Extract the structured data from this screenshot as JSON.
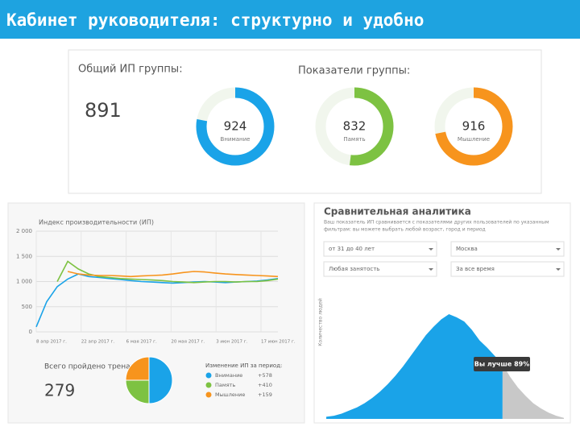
{
  "header": {
    "title": "Кабинет руководителя: структурно и удобно"
  },
  "summary": {
    "total_label": "Общий ИП группы:",
    "total_value": "891",
    "group_label": "Показатели группы:",
    "gauges": [
      {
        "value": "924",
        "label": "Внимание",
        "color": "#1aa3e8"
      },
      {
        "value": "832",
        "label": "Память",
        "color": "#7dc242"
      },
      {
        "value": "916",
        "label": "Мышление",
        "color": "#f7941d"
      }
    ]
  },
  "performance": {
    "type": "line",
    "title": "Индекс производительности (ИП)",
    "x_labels": [
      "8 апр 2017 г.",
      "22 апр 2017 г.",
      "6 мая 2017 г.",
      "20 мая 2017 г.",
      "3 июн 2017 г.",
      "17 июн 2017 г."
    ],
    "ylim": [
      0,
      2000
    ],
    "yticks": [
      {
        "value": 2000,
        "label": "2 000"
      },
      {
        "value": 1500,
        "label": "1 500"
      },
      {
        "value": 1000,
        "label": "1 000"
      },
      500,
      0
    ],
    "grid": true,
    "series": [
      {
        "color": "#1aa3e8",
        "values": [
          100,
          600,
          900,
          1050,
          1150,
          1100,
          1080,
          1060,
          1040,
          1020,
          1000,
          990,
          980,
          970,
          980,
          990,
          1000,
          990,
          980,
          990,
          1000,
          1010,
          1030,
          1060
        ]
      },
      {
        "color": "#7dc242",
        "values": [
          null,
          null,
          1000,
          1400,
          1250,
          1150,
          1100,
          1080,
          1060,
          1050,
          1040,
          1030,
          1020,
          1000,
          990,
          980,
          990,
          1000,
          1000,
          990,
          1000,
          1000,
          1020,
          1050
        ]
      },
      {
        "color": "#f7941d",
        "values": [
          null,
          null,
          null,
          1200,
          1150,
          1130,
          1120,
          1120,
          1110,
          1100,
          1110,
          1120,
          1130,
          1150,
          1180,
          1200,
          1190,
          1170,
          1150,
          1140,
          1130,
          1120,
          1110,
          1100
        ]
      }
    ]
  },
  "trainers": {
    "label": "Всего пройдено тренажеров:",
    "value": "279"
  },
  "pie": {
    "type": "pie",
    "values": [
      50,
      25,
      25
    ],
    "colors": [
      "#1aa3e8",
      "#7dc242",
      "#f7941d"
    ]
  },
  "changes": {
    "title": "Изменение ИП за период:",
    "items": [
      {
        "name": "Внимание",
        "value": "+578",
        "color": "#1aa3e8"
      },
      {
        "name": "Память",
        "value": "+410",
        "color": "#7dc242"
      },
      {
        "name": "Мышление",
        "value": "+159",
        "color": "#f7941d"
      }
    ]
  },
  "analytics": {
    "title": "Сравнительная аналитика",
    "description": [
      "Ваш показатель ИП сравнивается с показателями других пользователей по указанным",
      "фильтрам: вы можете выбрать любой возраст, город и период"
    ],
    "filters": [
      "от 31 до 40 лет",
      "Москва",
      "Любая занятость",
      "За все время"
    ],
    "y_label": "Количество людей",
    "badge": "Вы лучше 89%",
    "area_ylim": [
      0,
      100
    ],
    "area_highlight": {
      "color": "#1aa3e8",
      "values": [
        2,
        3,
        5,
        8,
        11,
        15,
        20,
        26,
        33,
        41,
        50,
        60,
        70,
        80,
        88,
        95,
        100,
        97,
        93,
        85,
        75,
        68,
        60,
        52,
        null,
        null,
        null,
        null,
        null,
        null,
        null,
        null
      ]
    },
    "area_rest": {
      "color": "#c8c8c8",
      "values": [
        null,
        null,
        null,
        null,
        null,
        null,
        null,
        null,
        null,
        null,
        null,
        null,
        null,
        null,
        null,
        null,
        null,
        null,
        null,
        null,
        null,
        null,
        null,
        52,
        40,
        30,
        22,
        15,
        10,
        6,
        3,
        1
      ]
    }
  }
}
